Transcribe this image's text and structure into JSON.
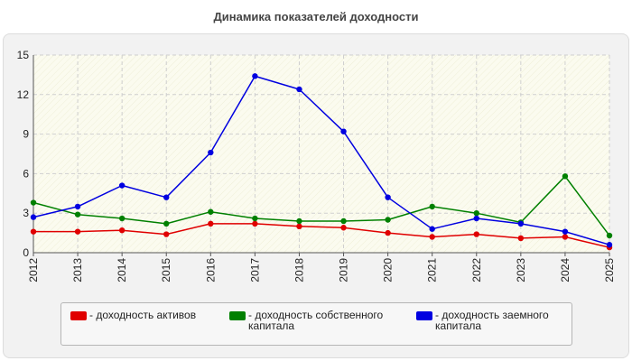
{
  "chart_data": {
    "type": "line",
    "title": "Динамика показателей доходности",
    "x": [
      "2012",
      "2013",
      "2014",
      "2015",
      "2016",
      "2017",
      "2018",
      "2019",
      "2020",
      "2021",
      "2022",
      "2023",
      "2024",
      "2025"
    ],
    "ylim": [
      0,
      15
    ],
    "yticks": [
      0,
      3,
      6,
      9,
      12,
      15
    ],
    "grid": true,
    "legend_position": "bottom",
    "series": [
      {
        "name": "- доходность активов",
        "color": "#e00000",
        "values": [
          1.6,
          1.6,
          1.7,
          1.4,
          2.2,
          2.2,
          2.0,
          1.9,
          1.5,
          1.2,
          1.4,
          1.1,
          1.2,
          0.4
        ]
      },
      {
        "name": "- доходность собственного капитала",
        "color": "#008000",
        "values": [
          3.8,
          2.9,
          2.6,
          2.2,
          3.1,
          2.6,
          2.4,
          2.4,
          2.5,
          3.5,
          3.0,
          2.3,
          5.8,
          1.3
        ]
      },
      {
        "name": "- доходность заемного капитала",
        "color": "#0000e0",
        "values": [
          2.7,
          3.5,
          5.1,
          4.2,
          7.6,
          13.4,
          12.4,
          9.2,
          4.2,
          1.8,
          2.6,
          2.2,
          1.6,
          0.6
        ]
      }
    ]
  }
}
